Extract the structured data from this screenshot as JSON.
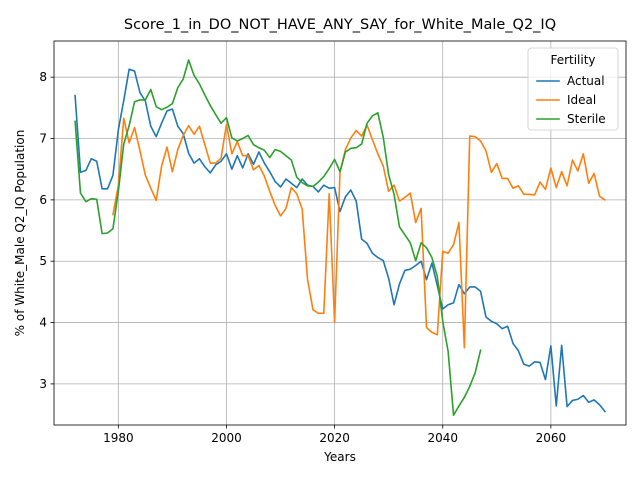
{
  "chart_data": {
    "type": "line",
    "title": "Score_1_in_DO_NOT_HAVE_ANY_SAY_for_White_Male_Q2_IQ",
    "xlabel": "Years",
    "ylabel": "% of White_Male Q2_IQ Population",
    "xlim": [
      1968.1,
      2073.9
    ],
    "ylim": [
      2.33,
      8.59
    ],
    "x_ticks": [
      1980,
      2000,
      2020,
      2040,
      2060
    ],
    "y_ticks": [
      3,
      4,
      5,
      6,
      7,
      8
    ],
    "grid": true,
    "legend": {
      "title": "Fertility",
      "position": "top-right"
    },
    "series": [
      {
        "name": "Actual",
        "color": "#1f77b4",
        "points": [
          [
            1972,
            7.7
          ],
          [
            1973,
            6.45
          ],
          [
            1974,
            6.48
          ],
          [
            1975,
            6.67
          ],
          [
            1976,
            6.63
          ],
          [
            1977,
            6.18
          ],
          [
            1978,
            6.18
          ],
          [
            1979,
            6.4
          ],
          [
            1980,
            7.14
          ],
          [
            1981,
            7.62
          ],
          [
            1982,
            8.13
          ],
          [
            1983,
            8.1
          ],
          [
            1984,
            7.75
          ],
          [
            1985,
            7.61
          ],
          [
            1986,
            7.2
          ],
          [
            1987,
            7.03
          ],
          [
            1988,
            7.25
          ],
          [
            1989,
            7.45
          ],
          [
            1990,
            7.48
          ],
          [
            1991,
            7.2
          ],
          [
            1992,
            7.08
          ],
          [
            1993,
            6.76
          ],
          [
            1994,
            6.6
          ],
          [
            1995,
            6.67
          ],
          [
            1996,
            6.54
          ],
          [
            1997,
            6.44
          ],
          [
            1998,
            6.57
          ],
          [
            1999,
            6.63
          ],
          [
            2000,
            6.75
          ],
          [
            2001,
            6.5
          ],
          [
            2002,
            6.72
          ],
          [
            2003,
            6.52
          ],
          [
            2004,
            6.75
          ],
          [
            2005,
            6.58
          ],
          [
            2006,
            6.78
          ],
          [
            2007,
            6.6
          ],
          [
            2008,
            6.46
          ],
          [
            2009,
            6.3
          ],
          [
            2010,
            6.21
          ],
          [
            2011,
            6.34
          ],
          [
            2012,
            6.27
          ],
          [
            2013,
            6.2
          ],
          [
            2014,
            6.34
          ],
          [
            2015,
            6.24
          ],
          [
            2016,
            6.22
          ],
          [
            2017,
            6.13
          ],
          [
            2018,
            6.24
          ],
          [
            2019,
            6.19
          ],
          [
            2020,
            6.2
          ],
          [
            2021,
            5.81
          ],
          [
            2022,
            6.05
          ],
          [
            2023,
            6.16
          ],
          [
            2024,
            5.98
          ],
          [
            2025,
            5.36
          ],
          [
            2026,
            5.29
          ],
          [
            2027,
            5.13
          ],
          [
            2028,
            5.06
          ],
          [
            2029,
            5.01
          ],
          [
            2030,
            4.72
          ],
          [
            2031,
            4.29
          ],
          [
            2032,
            4.63
          ],
          [
            2033,
            4.85
          ],
          [
            2034,
            4.87
          ],
          [
            2035,
            4.93
          ],
          [
            2036,
            5.0
          ],
          [
            2037,
            4.7
          ],
          [
            2038,
            4.97
          ],
          [
            2039,
            4.6
          ],
          [
            2040,
            4.22
          ],
          [
            2041,
            4.29
          ],
          [
            2042,
            4.32
          ],
          [
            2043,
            4.62
          ],
          [
            2044,
            4.47
          ],
          [
            2045,
            4.58
          ],
          [
            2046,
            4.58
          ],
          [
            2047,
            4.51
          ],
          [
            2048,
            4.09
          ],
          [
            2049,
            4.02
          ],
          [
            2050,
            3.98
          ],
          [
            2051,
            3.9
          ],
          [
            2052,
            3.94
          ],
          [
            2053,
            3.66
          ],
          [
            2054,
            3.54
          ],
          [
            2055,
            3.32
          ],
          [
            2056,
            3.29
          ],
          [
            2057,
            3.36
          ],
          [
            2058,
            3.35
          ],
          [
            2059,
            3.07
          ],
          [
            2060,
            3.62
          ],
          [
            2061,
            2.64
          ],
          [
            2062,
            3.63
          ],
          [
            2063,
            2.63
          ],
          [
            2064,
            2.73
          ],
          [
            2065,
            2.75
          ],
          [
            2066,
            2.81
          ],
          [
            2067,
            2.7
          ],
          [
            2068,
            2.74
          ],
          [
            2069,
            2.66
          ],
          [
            2070,
            2.55
          ]
        ]
      },
      {
        "name": "Ideal",
        "color": "#ff7f0e",
        "points": [
          [
            1979,
            5.76
          ],
          [
            1980,
            6.23
          ],
          [
            1981,
            7.33
          ],
          [
            1982,
            6.93
          ],
          [
            1983,
            7.18
          ],
          [
            1984,
            6.8
          ],
          [
            1985,
            6.4
          ],
          [
            1986,
            6.19
          ],
          [
            1987,
            5.99
          ],
          [
            1988,
            6.55
          ],
          [
            1989,
            6.86
          ],
          [
            1990,
            6.46
          ],
          [
            1991,
            6.82
          ],
          [
            1992,
            7.05
          ],
          [
            1993,
            7.21
          ],
          [
            1994,
            7.07
          ],
          [
            1995,
            7.2
          ],
          [
            1996,
            6.9
          ],
          [
            1997,
            6.6
          ],
          [
            1998,
            6.6
          ],
          [
            1999,
            6.68
          ],
          [
            2000,
            7.23
          ],
          [
            2001,
            6.75
          ],
          [
            2002,
            6.95
          ],
          [
            2003,
            6.72
          ],
          [
            2004,
            6.72
          ],
          [
            2005,
            6.49
          ],
          [
            2006,
            6.56
          ],
          [
            2007,
            6.39
          ],
          [
            2008,
            6.14
          ],
          [
            2009,
            5.91
          ],
          [
            2010,
            5.74
          ],
          [
            2011,
            5.86
          ],
          [
            2012,
            6.2
          ],
          [
            2013,
            6.1
          ],
          [
            2014,
            5.85
          ],
          [
            2015,
            4.7
          ],
          [
            2016,
            4.21
          ],
          [
            2017,
            4.15
          ],
          [
            2018,
            4.15
          ],
          [
            2019,
            6.1
          ],
          [
            2020,
            4.01
          ],
          [
            2021,
            6.45
          ],
          [
            2022,
            6.82
          ],
          [
            2023,
            7.01
          ],
          [
            2024,
            7.13
          ],
          [
            2025,
            7.04
          ],
          [
            2026,
            7.22
          ],
          [
            2027,
            6.98
          ],
          [
            2028,
            6.75
          ],
          [
            2029,
            6.55
          ],
          [
            2030,
            6.14
          ],
          [
            2031,
            6.24
          ],
          [
            2032,
            5.98
          ],
          [
            2033,
            6.04
          ],
          [
            2034,
            6.11
          ],
          [
            2035,
            5.63
          ],
          [
            2036,
            5.86
          ],
          [
            2037,
            3.92
          ],
          [
            2038,
            3.84
          ],
          [
            2039,
            3.8
          ],
          [
            2040,
            5.16
          ],
          [
            2041,
            5.13
          ],
          [
            2042,
            5.27
          ],
          [
            2043,
            5.63
          ],
          [
            2044,
            3.59
          ],
          [
            2045,
            7.04
          ],
          [
            2046,
            7.03
          ],
          [
            2047,
            6.96
          ],
          [
            2048,
            6.8
          ],
          [
            2049,
            6.45
          ],
          [
            2050,
            6.59
          ],
          [
            2051,
            6.35
          ],
          [
            2052,
            6.35
          ],
          [
            2053,
            6.19
          ],
          [
            2054,
            6.23
          ],
          [
            2055,
            6.09
          ],
          [
            2056,
            6.09
          ],
          [
            2057,
            6.08
          ],
          [
            2058,
            6.29
          ],
          [
            2059,
            6.17
          ],
          [
            2060,
            6.52
          ],
          [
            2061,
            6.2
          ],
          [
            2062,
            6.46
          ],
          [
            2063,
            6.23
          ],
          [
            2064,
            6.65
          ],
          [
            2065,
            6.47
          ],
          [
            2066,
            6.75
          ],
          [
            2067,
            6.27
          ],
          [
            2068,
            6.43
          ],
          [
            2069,
            6.06
          ],
          [
            2070,
            6.0
          ]
        ]
      },
      {
        "name": "Sterile",
        "color": "#2ca02c",
        "points": [
          [
            1972,
            7.28
          ],
          [
            1973,
            6.11
          ],
          [
            1974,
            5.97
          ],
          [
            1975,
            6.02
          ],
          [
            1976,
            6.01
          ],
          [
            1977,
            5.45
          ],
          [
            1978,
            5.46
          ],
          [
            1979,
            5.53
          ],
          [
            1980,
            6.14
          ],
          [
            1981,
            6.91
          ],
          [
            1982,
            7.21
          ],
          [
            1983,
            7.6
          ],
          [
            1984,
            7.63
          ],
          [
            1985,
            7.63
          ],
          [
            1986,
            7.8
          ],
          [
            1987,
            7.52
          ],
          [
            1988,
            7.47
          ],
          [
            1989,
            7.51
          ],
          [
            1990,
            7.57
          ],
          [
            1991,
            7.83
          ],
          [
            1992,
            7.97
          ],
          [
            1993,
            8.28
          ],
          [
            1994,
            8.03
          ],
          [
            1995,
            7.89
          ],
          [
            1996,
            7.71
          ],
          [
            1997,
            7.54
          ],
          [
            1998,
            7.39
          ],
          [
            1999,
            7.25
          ],
          [
            2000,
            7.34
          ],
          [
            2001,
            7.01
          ],
          [
            2002,
            6.96
          ],
          [
            2003,
            7.0
          ],
          [
            2004,
            7.05
          ],
          [
            2005,
            6.9
          ],
          [
            2006,
            6.85
          ],
          [
            2007,
            6.81
          ],
          [
            2008,
            6.69
          ],
          [
            2009,
            6.82
          ],
          [
            2010,
            6.79
          ],
          [
            2011,
            6.72
          ],
          [
            2012,
            6.65
          ],
          [
            2013,
            6.37
          ],
          [
            2014,
            6.28
          ],
          [
            2015,
            6.23
          ],
          [
            2016,
            6.22
          ],
          [
            2017,
            6.29
          ],
          [
            2018,
            6.38
          ],
          [
            2019,
            6.51
          ],
          [
            2020,
            6.66
          ],
          [
            2021,
            6.46
          ],
          [
            2022,
            6.78
          ],
          [
            2023,
            6.84
          ],
          [
            2024,
            6.85
          ],
          [
            2025,
            6.91
          ],
          [
            2026,
            7.25
          ],
          [
            2027,
            7.37
          ],
          [
            2028,
            7.42
          ],
          [
            2029,
            7.02
          ],
          [
            2030,
            6.41
          ],
          [
            2031,
            6.09
          ],
          [
            2032,
            5.56
          ],
          [
            2033,
            5.43
          ],
          [
            2034,
            5.3
          ],
          [
            2035,
            5.01
          ],
          [
            2036,
            5.3
          ],
          [
            2037,
            5.22
          ],
          [
            2038,
            5.06
          ],
          [
            2039,
            4.75
          ],
          [
            2040,
            4.02
          ],
          [
            2041,
            3.53
          ],
          [
            2042,
            2.49
          ],
          [
            2043,
            2.64
          ],
          [
            2044,
            2.78
          ],
          [
            2045,
            2.96
          ],
          [
            2046,
            3.18
          ],
          [
            2047,
            3.55
          ]
        ]
      }
    ]
  }
}
